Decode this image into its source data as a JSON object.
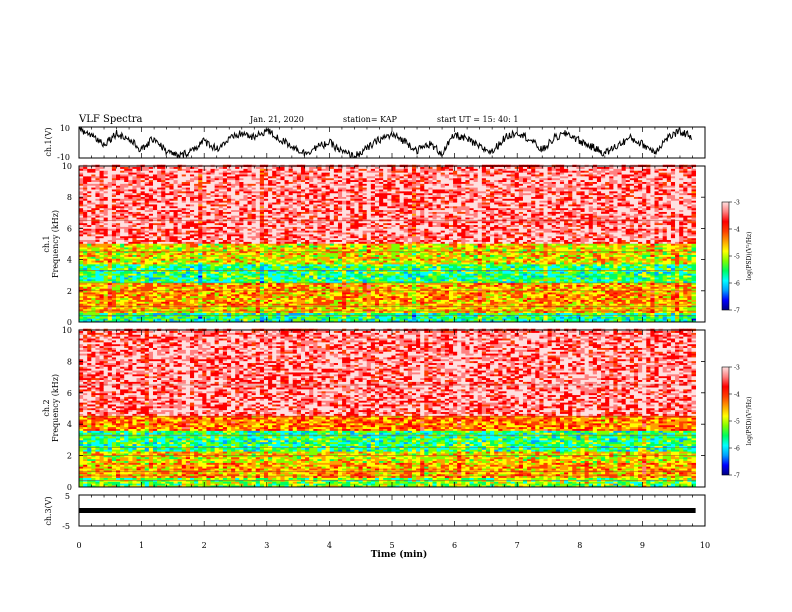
{
  "header": {
    "title": "VLF Spectra",
    "date": "Jan. 21, 2020",
    "station": "station= KAP",
    "start_time": "start  UT =   15: 40: 1"
  },
  "colors": {
    "colormap": [
      "#000080",
      "#0000ff",
      "#00a0ff",
      "#00ffff",
      "#00ff60",
      "#80ff00",
      "#ffff00",
      "#ffa000",
      "#ff4000",
      "#ff0000",
      "#ff8080",
      "#ffe0e0"
    ],
    "trace": "#000000"
  },
  "chart_data": [
    {
      "type": "line",
      "ylabel": "ch.1(V)",
      "ylim": [
        -10,
        10
      ],
      "y_ticklabels": [
        "10",
        "-10"
      ],
      "xlim": [
        0,
        10
      ],
      "x": [
        0,
        0.2,
        0.4,
        0.6,
        0.8,
        1.0,
        1.2,
        1.4,
        1.6,
        1.8,
        2.0,
        2.2,
        2.4,
        2.6,
        2.8,
        3.0,
        3.2,
        3.4,
        3.6,
        3.8,
        4.0,
        4.2,
        4.4,
        4.6,
        4.8,
        5.0,
        5.2,
        5.4,
        5.6,
        5.8,
        6.0,
        6.2,
        6.4,
        6.6,
        6.8,
        7.0,
        7.2,
        7.4,
        7.6,
        7.8,
        8.0,
        8.2,
        8.4,
        8.6,
        8.8,
        9.0,
        9.2,
        9.4,
        9.6,
        9.8
      ],
      "y": [
        8,
        5,
        -1,
        6,
        2,
        -5,
        3,
        -6,
        -9,
        -5,
        1,
        -4,
        2,
        6,
        3,
        8,
        2,
        -2,
        -7,
        -3,
        0,
        -6,
        -9,
        -4,
        2,
        5,
        1,
        -5,
        -1,
        -7,
        5,
        2,
        -3,
        -6,
        3,
        7,
        2,
        -5,
        3,
        6,
        1,
        -3,
        -7,
        -2,
        3,
        -1,
        -6,
        3,
        7,
        4
      ]
    },
    {
      "type": "heatmap",
      "ylabel": "Frequency (kHz)",
      "channel_label": "ch.1",
      "ylim": [
        0,
        10
      ],
      "y_ticklabels": [
        "0",
        "2",
        "4",
        "6",
        "8",
        "10"
      ],
      "colorbar": {
        "label": "log(PSD)(V²/Hz)",
        "range": [
          -7,
          -3
        ],
        "ticklabels": [
          "-3",
          "-4",
          "-5",
          "-6",
          "-7"
        ]
      },
      "bands": [
        [
          0.0,
          0.5,
          0.35
        ],
        [
          0.5,
          1.0,
          0.58
        ],
        [
          1.0,
          2.5,
          0.62
        ],
        [
          2.5,
          3.7,
          0.38
        ],
        [
          3.7,
          5.0,
          0.55
        ],
        [
          5.0,
          10.0,
          0.88
        ]
      ]
    },
    {
      "type": "heatmap",
      "ylabel": "Frequency (kHz)",
      "channel_label": "ch.2",
      "ylim": [
        0,
        10
      ],
      "y_ticklabels": [
        "0",
        "2",
        "4",
        "6",
        "8",
        "10"
      ],
      "colorbar": {
        "label": "log(PSD)(V²/Hz)",
        "range": [
          -7,
          -3
        ],
        "ticklabels": [
          "-3",
          "-4",
          "-5",
          "-6",
          "-7"
        ]
      },
      "bands": [
        [
          0.0,
          0.5,
          0.45
        ],
        [
          0.5,
          1.5,
          0.62
        ],
        [
          1.5,
          2.2,
          0.55
        ],
        [
          2.2,
          3.5,
          0.38
        ],
        [
          3.5,
          4.5,
          0.66
        ],
        [
          4.5,
          10.0,
          0.88
        ]
      ]
    },
    {
      "type": "line",
      "ylabel": "ch.3(V)",
      "ylim": [
        -5,
        5
      ],
      "y_ticklabels": [
        "5",
        "-5"
      ],
      "xlim": [
        0,
        10
      ],
      "x": [
        0,
        9.85
      ],
      "y": [
        0,
        0
      ]
    }
  ],
  "xaxis": {
    "label": "Time (min)",
    "ticklabels": [
      "0",
      "1",
      "2",
      "3",
      "4",
      "5",
      "6",
      "7",
      "8",
      "9",
      "10"
    ]
  }
}
